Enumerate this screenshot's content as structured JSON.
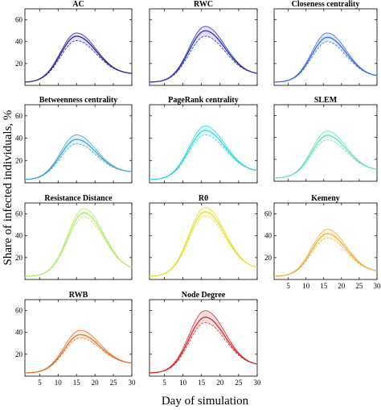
{
  "figure": {
    "ylabel": "Share of infected individuals, %",
    "xlabel": "Day of simulation"
  },
  "axes": {
    "xlim": [
      1,
      30
    ],
    "ylim": [
      0,
      70
    ],
    "xticks": [
      5,
      10,
      15,
      20,
      25,
      30
    ],
    "yticks": [
      20,
      40,
      60
    ],
    "xtick_labels": [
      "5",
      "10",
      "15",
      "20",
      "25",
      "30"
    ],
    "ytick_labels": [
      "20",
      "40",
      "60"
    ]
  },
  "chart_data": [
    {
      "type": "area",
      "title": "AC",
      "color": "#2a2a9c",
      "x": [
        1,
        30
      ],
      "peak_day": 15,
      "mean_peak": 45,
      "band_low_peak": 41,
      "band_high_peak": 48,
      "start": 3,
      "end": 11
    },
    {
      "type": "area",
      "title": "RWC",
      "color": "#3030c0",
      "x": [
        1,
        30
      ],
      "peak_day": 16,
      "mean_peak": 50,
      "band_low_peak": 45,
      "band_high_peak": 54,
      "start": 3,
      "end": 11
    },
    {
      "type": "area",
      "title": "Closeness centrality",
      "color": "#3a6ee0",
      "x": [
        1,
        30
      ],
      "peak_day": 16,
      "mean_peak": 44,
      "band_low_peak": 40,
      "band_high_peak": 48,
      "start": 3,
      "end": 9
    },
    {
      "type": "area",
      "title": "Betweenness centrality",
      "color": "#3aa8da",
      "x": [
        1,
        30
      ],
      "peak_day": 15,
      "mean_peak": 39,
      "band_low_peak": 35,
      "band_high_peak": 43,
      "start": 3,
      "end": 10
    },
    {
      "type": "area",
      "title": "PageRank centrality",
      "color": "#30d6e8",
      "x": [
        1,
        30
      ],
      "peak_day": 16,
      "mean_peak": 47,
      "band_low_peak": 43,
      "band_high_peak": 51,
      "start": 3,
      "end": 11
    },
    {
      "type": "area",
      "title": "SLEM",
      "color": "#6fe0b4",
      "x": [
        1,
        30
      ],
      "peak_day": 16,
      "mean_peak": 42,
      "band_low_peak": 38,
      "band_high_peak": 46,
      "start": 3,
      "end": 11
    },
    {
      "type": "area",
      "title": "Resistance Distance",
      "color": "#b4ec70",
      "x": [
        1,
        30
      ],
      "peak_day": 17,
      "mean_peak": 61,
      "band_low_peak": 57,
      "band_high_peak": 65,
      "start": 3,
      "end": 11
    },
    {
      "type": "area",
      "title": "R0",
      "color": "#e8e030",
      "x": [
        1,
        30
      ],
      "peak_day": 16,
      "mean_peak": 62,
      "band_low_peak": 58,
      "band_high_peak": 66,
      "start": 3,
      "end": 11
    },
    {
      "type": "area",
      "title": "Kemeny",
      "color": "#f0b040",
      "x": [
        1,
        30
      ],
      "peak_day": 16,
      "mean_peak": 42,
      "band_low_peak": 38,
      "band_high_peak": 46,
      "start": 3,
      "end": 8
    },
    {
      "type": "area",
      "title": "RWB",
      "color": "#e8702a",
      "x": [
        1,
        30
      ],
      "peak_day": 16,
      "mean_peak": 38,
      "band_low_peak": 35,
      "band_high_peak": 42,
      "start": 3,
      "end": 12
    },
    {
      "type": "area",
      "title": "Node Degree",
      "color": "#d82828",
      "x": [
        1,
        30
      ],
      "peak_day": 16,
      "mean_peak": 54,
      "band_low_peak": 49,
      "band_high_peak": 60,
      "start": 3,
      "end": 11
    }
  ]
}
